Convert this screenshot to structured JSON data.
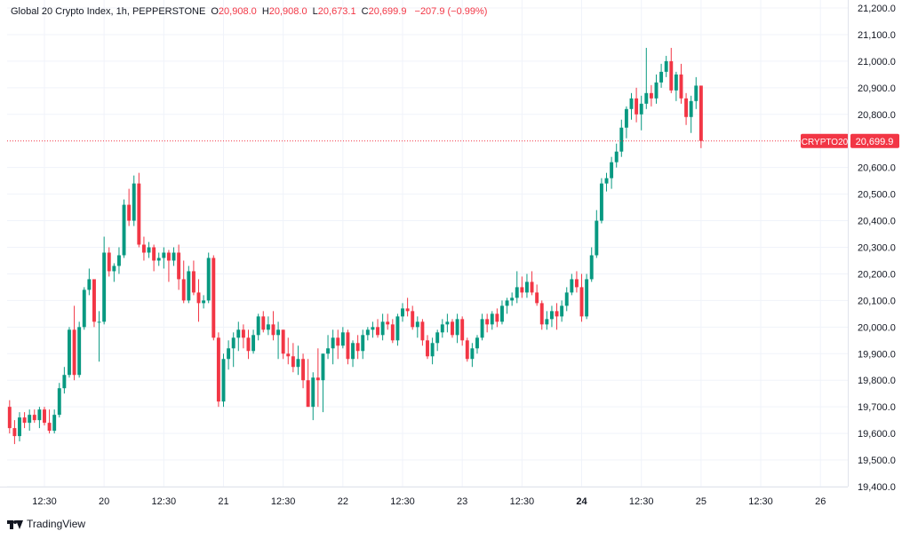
{
  "header": {
    "title": "Global 20 Crypto Index, 1h, PEPPERSTONE",
    "o_label": "O",
    "o_value": "20,908.0",
    "h_label": "H",
    "h_value": "20,908.0",
    "l_label": "L",
    "l_value": "20,673.1",
    "c_label": "C",
    "c_value": "20,699.9",
    "change": "−207.9 (−0.99%)"
  },
  "price_tag": {
    "symbol": "CRYPTO20",
    "value": "20,699.9"
  },
  "footer": {
    "brand": "TradingView"
  },
  "colors": {
    "up": "#089981",
    "down": "#f23645",
    "grid": "#f0f3fa",
    "text": "#131722",
    "line": "#f23645"
  },
  "chart_data": {
    "type": "candlestick",
    "ylim": [
      19400,
      21200
    ],
    "y_ticks": [
      {
        "value": 21200,
        "label": "21,200.0"
      },
      {
        "value": 21100,
        "label": "21,100.0"
      },
      {
        "value": 21000,
        "label": "21,000.0"
      },
      {
        "value": 20900,
        "label": "20,900.0"
      },
      {
        "value": 20800,
        "label": "20,800.0"
      },
      {
        "value": 20600,
        "label": "20,600.0"
      },
      {
        "value": 20500,
        "label": "20,500.0"
      },
      {
        "value": 20400,
        "label": "20,400.0"
      },
      {
        "value": 20300,
        "label": "20,300.0"
      },
      {
        "value": 20200,
        "label": "20,200.0"
      },
      {
        "value": 20100,
        "label": "20,100.0"
      },
      {
        "value": 20000,
        "label": "20,000.0"
      },
      {
        "value": 19900,
        "label": "19,900.0"
      },
      {
        "value": 19800,
        "label": "19,800.0"
      },
      {
        "value": 19700,
        "label": "19,700.0"
      },
      {
        "value": 19600,
        "label": "19,600.0"
      },
      {
        "value": 19500,
        "label": "19,500.0"
      },
      {
        "value": 19400,
        "label": "19,400.0"
      }
    ],
    "x_ticks": [
      {
        "index": 7,
        "label": "12:30",
        "bold": false
      },
      {
        "index": 19,
        "label": "20",
        "bold": false
      },
      {
        "index": 31,
        "label": "12:30",
        "bold": false
      },
      {
        "index": 43,
        "label": "21",
        "bold": false
      },
      {
        "index": 55,
        "label": "12:30",
        "bold": false
      },
      {
        "index": 67,
        "label": "22",
        "bold": false
      },
      {
        "index": 79,
        "label": "12:30",
        "bold": false
      },
      {
        "index": 91,
        "label": "23",
        "bold": false
      },
      {
        "index": 103,
        "label": "12:30",
        "bold": false
      },
      {
        "index": 115,
        "label": "24",
        "bold": true
      },
      {
        "index": 127,
        "label": "12:30",
        "bold": false
      },
      {
        "index": 139,
        "label": "25",
        "bold": false
      },
      {
        "index": 151,
        "label": "12:30",
        "bold": false
      },
      {
        "index": 163,
        "label": "26",
        "bold": false
      }
    ],
    "x_range": [
      -0.5,
      168.5
    ],
    "last_price": 20699.9,
    "candles": [
      [
        19700,
        19725,
        19600,
        19620
      ],
      [
        19620,
        19650,
        19560,
        19590
      ],
      [
        19590,
        19680,
        19570,
        19660
      ],
      [
        19660,
        19680,
        19620,
        19640
      ],
      [
        19640,
        19690,
        19610,
        19670
      ],
      [
        19670,
        19690,
        19640,
        19650
      ],
      [
        19650,
        19700,
        19620,
        19690
      ],
      [
        19690,
        19700,
        19630,
        19640
      ],
      [
        19640,
        19690,
        19600,
        19610
      ],
      [
        19610,
        19690,
        19600,
        19670
      ],
      [
        19670,
        19790,
        19660,
        19770
      ],
      [
        19770,
        19850,
        19750,
        19820
      ],
      [
        19820,
        20000,
        19810,
        19990
      ],
      [
        19990,
        20080,
        19800,
        19820
      ],
      [
        19820,
        20020,
        19810,
        20000
      ],
      [
        20000,
        20150,
        19990,
        20140
      ],
      [
        20140,
        20220,
        20120,
        20180
      ],
      [
        20180,
        20170,
        20000,
        20020
      ],
      [
        20020,
        20060,
        19870,
        20020
      ],
      [
        20020,
        20340,
        20010,
        20280
      ],
      [
        20280,
        20300,
        20190,
        20210
      ],
      [
        20210,
        20240,
        20170,
        20230
      ],
      [
        20230,
        20300,
        20200,
        20270
      ],
      [
        20270,
        20480,
        20260,
        20460
      ],
      [
        20460,
        20520,
        20380,
        20400
      ],
      [
        20400,
        20570,
        20380,
        20540
      ],
      [
        20540,
        20580,
        20300,
        20310
      ],
      [
        20310,
        20340,
        20250,
        20280
      ],
      [
        20280,
        20320,
        20260,
        20300
      ],
      [
        20300,
        20310,
        20210,
        20250
      ],
      [
        20250,
        20280,
        20230,
        20260
      ],
      [
        20260,
        20300,
        20220,
        20280
      ],
      [
        20280,
        20290,
        20170,
        20250
      ],
      [
        20250,
        20300,
        20230,
        20280
      ],
      [
        20280,
        20310,
        20140,
        20180
      ],
      [
        20180,
        20250,
        20090,
        20100
      ],
      [
        20100,
        20230,
        20090,
        20210
      ],
      [
        20210,
        20250,
        20120,
        20130
      ],
      [
        20130,
        20180,
        20020,
        20090
      ],
      [
        20090,
        20120,
        20070,
        20100
      ],
      [
        20100,
        20280,
        20090,
        20260
      ],
      [
        20260,
        20270,
        19950,
        19960
      ],
      [
        19960,
        19980,
        19700,
        19720
      ],
      [
        19720,
        19900,
        19700,
        19880
      ],
      [
        19880,
        19950,
        19840,
        19920
      ],
      [
        19920,
        19980,
        19850,
        19960
      ],
      [
        19960,
        20020,
        19910,
        19990
      ],
      [
        19990,
        20010,
        19920,
        19960
      ],
      [
        19960,
        19990,
        19880,
        19910
      ],
      [
        19910,
        19990,
        19900,
        19970
      ],
      [
        19970,
        20050,
        19950,
        20040
      ],
      [
        20040,
        20060,
        19980,
        19990
      ],
      [
        19990,
        20040,
        19970,
        20010
      ],
      [
        20010,
        20060,
        19950,
        19970
      ],
      [
        19970,
        20020,
        19880,
        19990
      ],
      [
        19990,
        19990,
        19880,
        19900
      ],
      [
        19900,
        19960,
        19860,
        19890
      ],
      [
        19890,
        19940,
        19830,
        19850
      ],
      [
        19850,
        19930,
        19820,
        19880
      ],
      [
        19880,
        19900,
        19770,
        19800
      ],
      [
        19800,
        19880,
        19700,
        19700
      ],
      [
        19700,
        19830,
        19650,
        19810
      ],
      [
        19810,
        19920,
        19700,
        19800
      ],
      [
        19800,
        19900,
        19680,
        19900
      ],
      [
        19900,
        19970,
        19880,
        19920
      ],
      [
        19920,
        19990,
        19860,
        19960
      ],
      [
        19960,
        19990,
        19880,
        19930
      ],
      [
        19930,
        20000,
        19920,
        19980
      ],
      [
        19980,
        19990,
        19860,
        19880
      ],
      [
        19880,
        19950,
        19850,
        19940
      ],
      [
        19940,
        19970,
        19880,
        19910
      ],
      [
        19910,
        19990,
        19880,
        19970
      ],
      [
        19970,
        20000,
        19950,
        19990
      ],
      [
        19990,
        20020,
        19960,
        20000
      ],
      [
        20000,
        20030,
        19960,
        19970
      ],
      [
        19970,
        20050,
        19950,
        20020
      ],
      [
        20020,
        20050,
        19990,
        20010
      ],
      [
        20010,
        20030,
        19940,
        19950
      ],
      [
        19950,
        20050,
        19930,
        20040
      ],
      [
        20040,
        20090,
        20020,
        20070
      ],
      [
        20070,
        20110,
        20040,
        20060
      ],
      [
        20060,
        20080,
        19990,
        20000
      ],
      [
        20000,
        20040,
        19960,
        20020
      ],
      [
        20020,
        20030,
        19930,
        19950
      ],
      [
        19950,
        19970,
        19880,
        19890
      ],
      [
        19890,
        19960,
        19860,
        19940
      ],
      [
        19940,
        19990,
        19910,
        19980
      ],
      [
        19980,
        20030,
        19960,
        20010
      ],
      [
        20010,
        20050,
        19980,
        20020
      ],
      [
        20020,
        20030,
        19960,
        19970
      ],
      [
        19970,
        20050,
        19940,
        20030
      ],
      [
        20030,
        20040,
        19930,
        19950
      ],
      [
        19950,
        19960,
        19870,
        19880
      ],
      [
        19880,
        19940,
        19850,
        19920
      ],
      [
        19920,
        19970,
        19900,
        19960
      ],
      [
        19960,
        20050,
        19950,
        20030
      ],
      [
        20030,
        20050,
        19980,
        20010
      ],
      [
        20010,
        20060,
        19990,
        20050
      ],
      [
        20050,
        20070,
        20000,
        20020
      ],
      [
        20020,
        20100,
        20010,
        20080
      ],
      [
        20080,
        20110,
        20050,
        20100
      ],
      [
        20100,
        20130,
        20080,
        20110
      ],
      [
        20110,
        20210,
        20090,
        20150
      ],
      [
        20150,
        20190,
        20110,
        20130
      ],
      [
        20130,
        20200,
        20110,
        20170
      ],
      [
        20170,
        20210,
        20120,
        20130
      ],
      [
        20130,
        20160,
        20080,
        20090
      ],
      [
        20090,
        20100,
        19990,
        20010
      ],
      [
        20010,
        20060,
        19990,
        20030
      ],
      [
        20030,
        20080,
        20000,
        20060
      ],
      [
        20060,
        20090,
        19990,
        20040
      ],
      [
        20040,
        20100,
        20020,
        20080
      ],
      [
        20080,
        20150,
        20060,
        20130
      ],
      [
        20130,
        20200,
        20120,
        20180
      ],
      [
        20180,
        20210,
        20130,
        20150
      ],
      [
        20150,
        20200,
        20020,
        20040
      ],
      [
        20040,
        20200,
        20030,
        20180
      ],
      [
        20180,
        20300,
        20170,
        20270
      ],
      [
        20270,
        20440,
        20260,
        20400
      ],
      [
        20400,
        20560,
        20390,
        20540
      ],
      [
        20540,
        20580,
        20510,
        20560
      ],
      [
        20560,
        20640,
        20520,
        20620
      ],
      [
        20620,
        20690,
        20600,
        20660
      ],
      [
        20660,
        20780,
        20640,
        20750
      ],
      [
        20750,
        20830,
        20710,
        20820
      ],
      [
        20820,
        20880,
        20780,
        20860
      ],
      [
        20860,
        20900,
        20770,
        20800
      ],
      [
        20800,
        20870,
        20740,
        20840
      ],
      [
        20840,
        21050,
        20820,
        20880
      ],
      [
        20880,
        20910,
        20830,
        20860
      ],
      [
        20860,
        20950,
        20840,
        20920
      ],
      [
        20920,
        20990,
        20900,
        20960
      ],
      [
        20960,
        21020,
        20940,
        21000
      ],
      [
        21000,
        21050,
        20880,
        20890
      ],
      [
        20890,
        20960,
        20850,
        20950
      ],
      [
        20950,
        20990,
        20840,
        20860
      ],
      [
        20860,
        20880,
        20760,
        20790
      ],
      [
        20790,
        20870,
        20730,
        20850
      ],
      [
        20850,
        20940,
        20820,
        20908
      ],
      [
        20908,
        20908,
        20673,
        20700
      ]
    ]
  }
}
